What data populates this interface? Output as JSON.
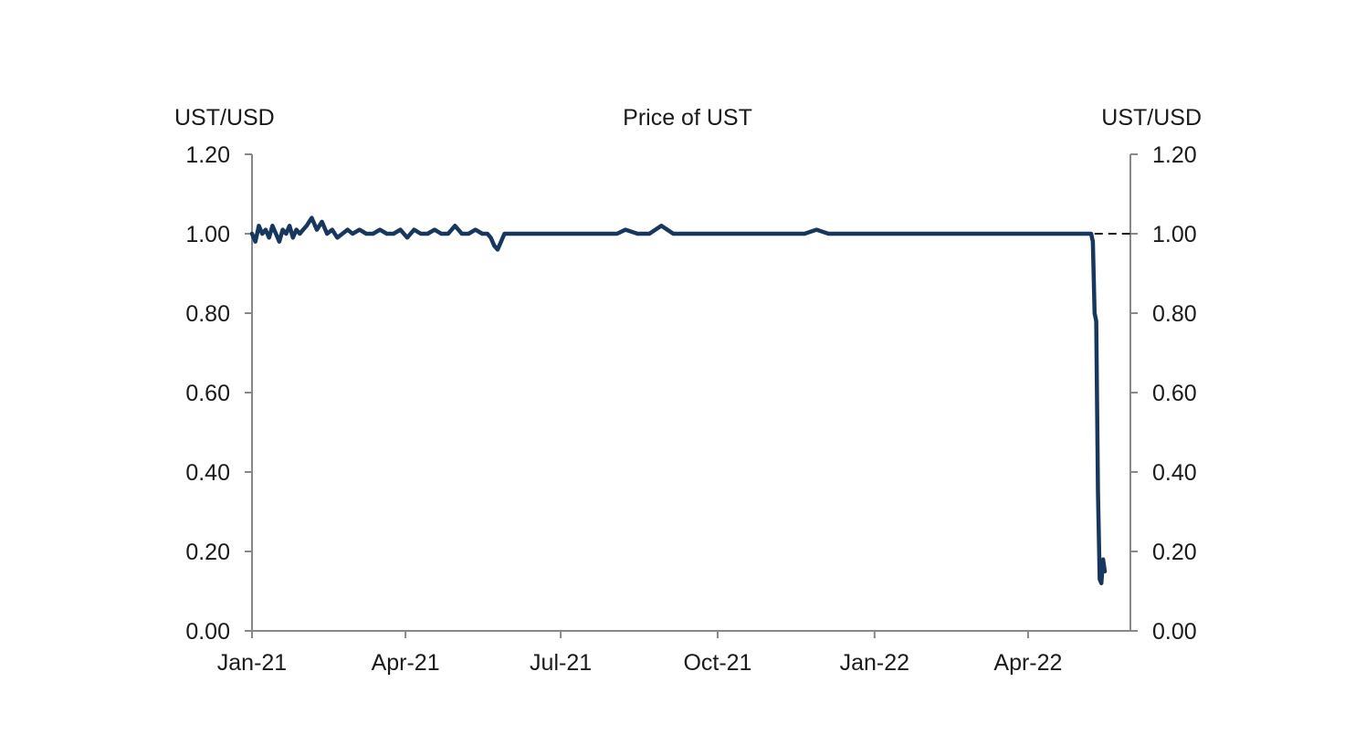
{
  "chart_data": {
    "type": "line",
    "title": "Price of UST",
    "ylabel_left": "UST/USD",
    "ylabel_right": "UST/USD",
    "ylim": [
      0,
      1.2
    ],
    "yticks": [
      "0.00",
      "0.20",
      "0.40",
      "0.60",
      "0.80",
      "1.00",
      "1.20"
    ],
    "yticks_right": [
      "0.00",
      "0.20",
      "0.40",
      "0.60",
      "0.80",
      "1.00",
      "1.20"
    ],
    "xlim": [
      "2021-01-01",
      "2022-05-31"
    ],
    "xticks": [
      {
        "date": "2021-01-01",
        "label": "Jan-21"
      },
      {
        "date": "2021-04-01",
        "label": "Apr-21"
      },
      {
        "date": "2021-07-01",
        "label": "Jul-21"
      },
      {
        "date": "2021-10-01",
        "label": "Oct-21"
      },
      {
        "date": "2022-01-01",
        "label": "Jan-22"
      },
      {
        "date": "2022-04-01",
        "label": "Apr-22"
      }
    ],
    "grid": false,
    "reference_line": {
      "y": 1.0,
      "style": "dashed",
      "from": "2022-05-10"
    },
    "series": [
      {
        "color": "#17375e",
        "x": [
          "2021-01-01",
          "2021-01-03",
          "2021-01-05",
          "2021-01-07",
          "2021-01-09",
          "2021-01-11",
          "2021-01-13",
          "2021-01-15",
          "2021-01-17",
          "2021-01-19",
          "2021-01-21",
          "2021-01-23",
          "2021-01-25",
          "2021-01-27",
          "2021-01-29",
          "2021-01-31",
          "2021-02-02",
          "2021-02-05",
          "2021-02-08",
          "2021-02-11",
          "2021-02-14",
          "2021-02-17",
          "2021-02-20",
          "2021-02-23",
          "2021-02-26",
          "2021-03-01",
          "2021-03-05",
          "2021-03-09",
          "2021-03-13",
          "2021-03-17",
          "2021-03-21",
          "2021-03-25",
          "2021-03-29",
          "2021-04-02",
          "2021-04-06",
          "2021-04-10",
          "2021-04-14",
          "2021-04-18",
          "2021-04-22",
          "2021-04-26",
          "2021-04-30",
          "2021-05-04",
          "2021-05-08",
          "2021-05-12",
          "2021-05-16",
          "2021-05-19",
          "2021-05-21",
          "2021-05-23",
          "2021-05-25",
          "2021-05-27",
          "2021-05-29",
          "2021-06-01",
          "2021-06-06",
          "2021-06-11",
          "2021-06-16",
          "2021-06-21",
          "2021-06-26",
          "2021-07-01",
          "2021-07-08",
          "2021-07-15",
          "2021-07-22",
          "2021-07-29",
          "2021-08-03",
          "2021-08-08",
          "2021-08-15",
          "2021-08-22",
          "2021-08-29",
          "2021-09-05",
          "2021-09-12",
          "2021-09-19",
          "2021-09-26",
          "2021-10-03",
          "2021-10-10",
          "2021-10-17",
          "2021-10-24",
          "2021-10-31",
          "2021-11-07",
          "2021-11-14",
          "2021-11-21",
          "2021-11-28",
          "2021-12-05",
          "2021-12-12",
          "2021-12-19",
          "2021-12-26",
          "2022-01-02",
          "2022-01-09",
          "2022-01-16",
          "2022-01-23",
          "2022-01-30",
          "2022-02-06",
          "2022-02-13",
          "2022-02-20",
          "2022-02-27",
          "2022-03-06",
          "2022-03-13",
          "2022-03-20",
          "2022-03-27",
          "2022-04-03",
          "2022-04-10",
          "2022-04-17",
          "2022-04-24",
          "2022-05-01",
          "2022-05-05",
          "2022-05-07",
          "2022-05-08",
          "2022-05-09",
          "2022-05-10",
          "2022-05-11",
          "2022-05-12",
          "2022-05-13",
          "2022-05-14",
          "2022-05-15",
          "2022-05-16"
        ],
        "values": [
          1.0,
          0.98,
          1.02,
          1.0,
          1.01,
          0.99,
          1.02,
          1.0,
          0.98,
          1.01,
          1.0,
          1.02,
          0.99,
          1.01,
          1.0,
          1.01,
          1.02,
          1.04,
          1.01,
          1.03,
          1.0,
          1.01,
          0.99,
          1.0,
          1.01,
          1.0,
          1.01,
          1.0,
          1.0,
          1.01,
          1.0,
          1.0,
          1.01,
          0.99,
          1.01,
          1.0,
          1.0,
          1.01,
          1.0,
          1.0,
          1.02,
          1.0,
          1.0,
          1.01,
          1.0,
          1.0,
          0.99,
          0.97,
          0.96,
          0.98,
          1.0,
          1.0,
          1.0,
          1.0,
          1.0,
          1.0,
          1.0,
          1.0,
          1.0,
          1.0,
          1.0,
          1.0,
          1.0,
          1.01,
          1.0,
          1.0,
          1.02,
          1.0,
          1.0,
          1.0,
          1.0,
          1.0,
          1.0,
          1.0,
          1.0,
          1.0,
          1.0,
          1.0,
          1.0,
          1.01,
          1.0,
          1.0,
          1.0,
          1.0,
          1.0,
          1.0,
          1.0,
          1.0,
          1.0,
          1.0,
          1.0,
          1.0,
          1.0,
          1.0,
          1.0,
          1.0,
          1.0,
          1.0,
          1.0,
          1.0,
          1.0,
          1.0,
          1.0,
          1.0,
          1.0,
          0.98,
          0.8,
          0.78,
          0.35,
          0.13,
          0.12,
          0.18,
          0.15
        ]
      }
    ]
  }
}
